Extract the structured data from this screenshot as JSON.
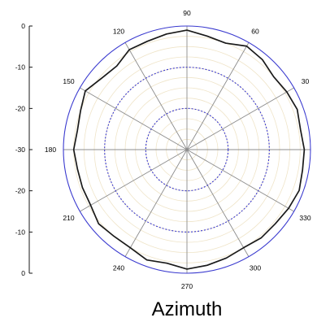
{
  "chart_data": {
    "type": "polar-line",
    "title": "",
    "xlabel": "Azimuth",
    "ylabel": "",
    "theta_unit": "degrees",
    "theta_ticks": [
      0,
      30,
      60,
      90,
      120,
      150,
      180,
      210,
      240,
      270,
      300,
      330
    ],
    "theta_tick_labels": [
      "",
      "30",
      "60",
      "90",
      "120",
      "150",
      "180",
      "210",
      "240",
      "270",
      "300",
      "330"
    ],
    "r_range": [
      -30,
      0
    ],
    "r_axis_ticks": [
      0,
      -10,
      -20,
      -30,
      -20,
      -10,
      0
    ],
    "r_axis_tick_labels": [
      "0",
      "-10",
      "-20",
      "-30",
      "-20",
      "-10",
      "0"
    ],
    "dashed_rings": [
      -20,
      -10,
      0
    ],
    "grid": true,
    "colors": {
      "series": "#1a1a1a",
      "dashed_rings": "#3a3acf",
      "spokes": "#8c8c8c",
      "minor_rings": "#efe4c8"
    },
    "series": [
      {
        "theta": [
          0,
          10,
          20,
          30,
          40,
          50,
          60,
          70,
          80,
          90,
          100,
          110,
          120,
          130,
          140,
          150,
          160,
          170,
          180,
          190,
          200,
          210,
          220,
          230,
          240,
          250,
          260,
          270,
          280,
          290,
          300,
          310,
          320,
          330,
          340,
          350
        ],
        "r": [
          -1.5,
          -2.0,
          -1.5,
          -2.0,
          -2.5,
          -1.5,
          -1.0,
          -2.5,
          -2.0,
          -1.0,
          -1.5,
          -2.0,
          -2.0,
          -3.5,
          -3.0,
          -1.5,
          -2.5,
          -3.0,
          -2.5,
          -3.0,
          -3.0,
          -3.0,
          -2.0,
          -2.5,
          -2.5,
          -1.5,
          -2.0,
          -1.0,
          -1.5,
          -2.0,
          -2.5,
          -2.0,
          -2.0,
          -1.5,
          -1.0,
          -1.5
        ]
      }
    ]
  }
}
